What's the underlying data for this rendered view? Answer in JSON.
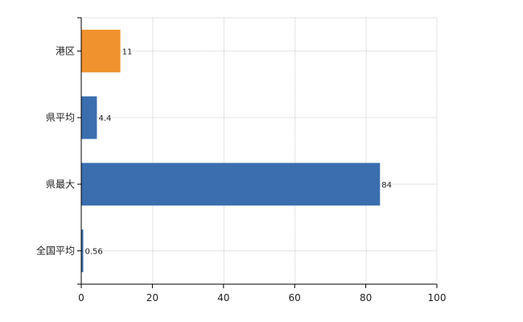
{
  "chart_data": {
    "type": "bar",
    "orientation": "horizontal",
    "title": "",
    "xlabel": "",
    "ylabel": "",
    "categories": [
      "港区",
      "県平均",
      "県最大",
      "全国平均"
    ],
    "values": [
      11,
      4.4,
      84,
      0.56
    ],
    "value_labels": [
      "11",
      "4.4",
      "84",
      "0.56"
    ],
    "bar_colors": [
      "#F0922D",
      "#3A6EAE",
      "#3A6EAE",
      "#3A6EAE"
    ],
    "xlim": [
      0,
      100
    ],
    "xticks": [
      0,
      20,
      40,
      60,
      80,
      100
    ],
    "xtick_labels": [
      "0",
      "20",
      "40",
      "60",
      "80",
      "100"
    ],
    "grid": true,
    "legend": "none"
  }
}
